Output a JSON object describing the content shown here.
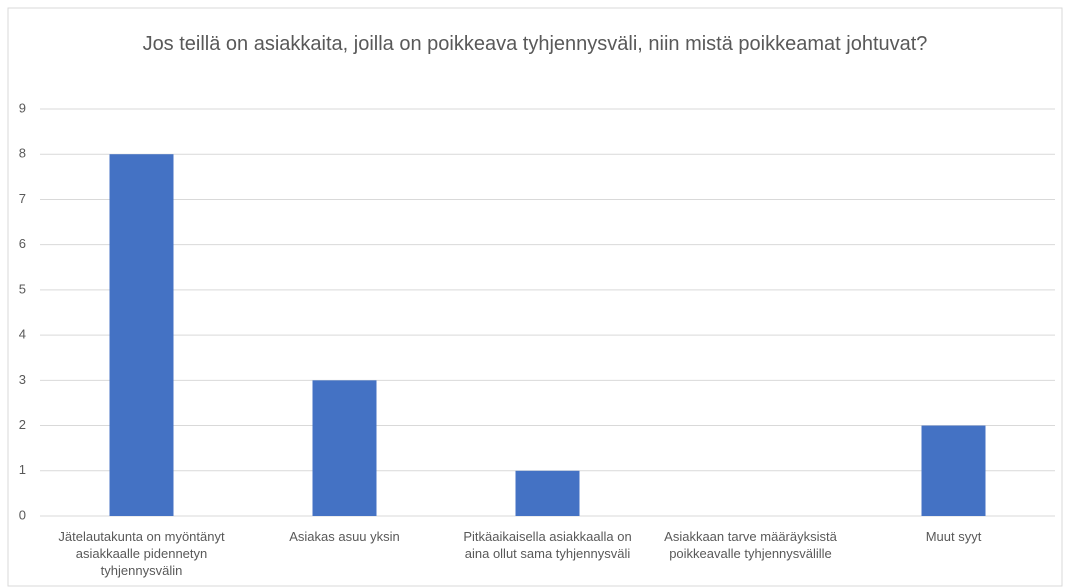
{
  "chart_data": {
    "type": "bar",
    "title": "Jos teillä on asiakkaita, joilla on poikkeava tyhjennysväli, niin mistä poikkeamat johtuvat?",
    "categories": [
      "Jätelautakunta on myöntänyt asiakkaalle pidennetyn tyhjennysvälin",
      "Asiakas asuu yksin",
      "Pitkäaikaisella asiakkaalla on aina ollut sama tyhjennysväli",
      "Asiakkaan tarve määräyksistä poikkeavalle tyhjennysvälille",
      "Muut syyt"
    ],
    "values": [
      8,
      3,
      1,
      0,
      2
    ],
    "color": "#4472c4",
    "ylim": [
      0,
      9
    ],
    "yticks": [
      0,
      1,
      2,
      3,
      4,
      5,
      6,
      7,
      8,
      9
    ],
    "grid": true
  }
}
